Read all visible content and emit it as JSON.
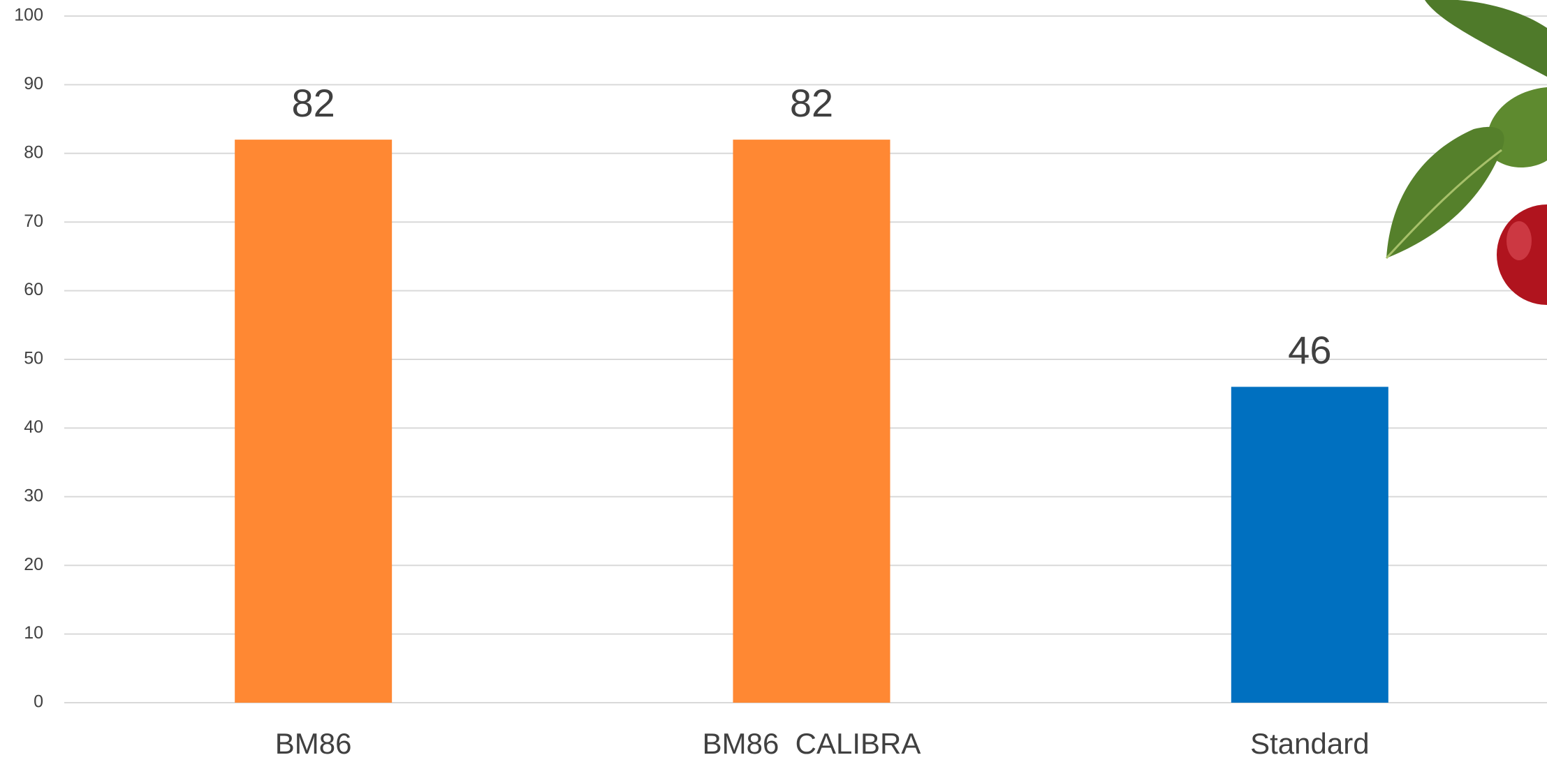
{
  "chart_data": {
    "type": "bar",
    "categories": [
      "BM86",
      "BM86  CALIBRA",
      "Standard"
    ],
    "values": [
      82,
      82,
      46
    ],
    "colors": [
      "#ff8833",
      "#ff8833",
      "#0070c0"
    ],
    "ylim": [
      0,
      100
    ],
    "yticks": [
      0,
      10,
      20,
      30,
      40,
      50,
      60,
      70,
      80,
      90,
      100
    ],
    "grid": true,
    "data_labels": true
  }
}
